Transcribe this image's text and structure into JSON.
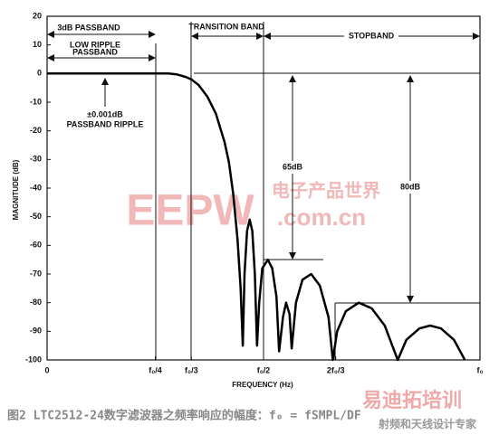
{
  "chart_data": {
    "type": "line",
    "xlabel": "FREQUENCY (Hz)",
    "ylabel": "MAGNITUDE (dB)",
    "x": [
      0,
      0.28,
      0.3,
      0.32,
      0.333,
      0.35,
      0.37,
      0.39,
      0.41,
      0.42,
      0.43,
      0.44,
      0.447,
      0.452,
      0.456,
      0.462,
      0.468,
      0.474,
      0.48,
      0.485,
      0.49,
      0.497,
      0.51,
      0.52,
      0.53,
      0.536,
      0.545,
      0.552,
      0.56,
      0.565,
      0.575,
      0.59,
      0.61,
      0.63,
      0.65,
      0.66,
      0.67,
      0.69,
      0.72,
      0.75,
      0.78,
      0.81,
      0.83,
      0.86,
      0.885,
      0.91,
      0.94,
      0.965
    ],
    "series": [
      {
        "color": "#000000",
        "values": [
          0,
          0,
          -0.3,
          -1.2,
          -2,
          -4,
          -8,
          -14,
          -24,
          -31,
          -42,
          -58,
          -75,
          -95,
          -70,
          -55,
          -51,
          -55,
          -70,
          -95,
          -80,
          -68,
          -65,
          -68,
          -78,
          -97,
          -85,
          -80,
          -84,
          -96,
          -80,
          -72,
          -70,
          -74,
          -85,
          -100,
          -90,
          -83,
          -80,
          -82,
          -88,
          -100,
          -93,
          -89,
          -88,
          -89,
          -93,
          -100
        ]
      }
    ],
    "xlim": [
      0,
      1
    ],
    "xticks": [
      0,
      {
        "value": 0.25,
        "label": "f₀/4"
      },
      {
        "value": 0.3333,
        "label": "f₀/3"
      },
      {
        "value": 0.5,
        "label": "f₀/2"
      },
      {
        "value": 0.6667,
        "label": "2f₀/3"
      },
      {
        "value": 1,
        "label": "f₀"
      }
    ],
    "ylim": [
      -100,
      20
    ],
    "yticks": [
      20,
      10,
      0,
      -10,
      -20,
      -30,
      -40,
      -50,
      -60,
      -70,
      -80,
      -90,
      -100
    ],
    "grid": false,
    "annotations": [
      "3dB PASSBAND",
      "LOW RIPPLE",
      "PASSBAND",
      "TRANSITION BAND",
      "STOPBAND",
      "±0.001dB",
      "PASSBAND RIPPLE",
      "65dB",
      "80dB"
    ],
    "watermarks": [
      "电子产品世界",
      "EEPW",
      ".com.cn",
      "易迪拓培训",
      "射频和天线设计专家"
    ],
    "caption": "图2 LTC2512-24数字滤波器之频率响应的幅度：f₀ = fSMPL/DF"
  }
}
